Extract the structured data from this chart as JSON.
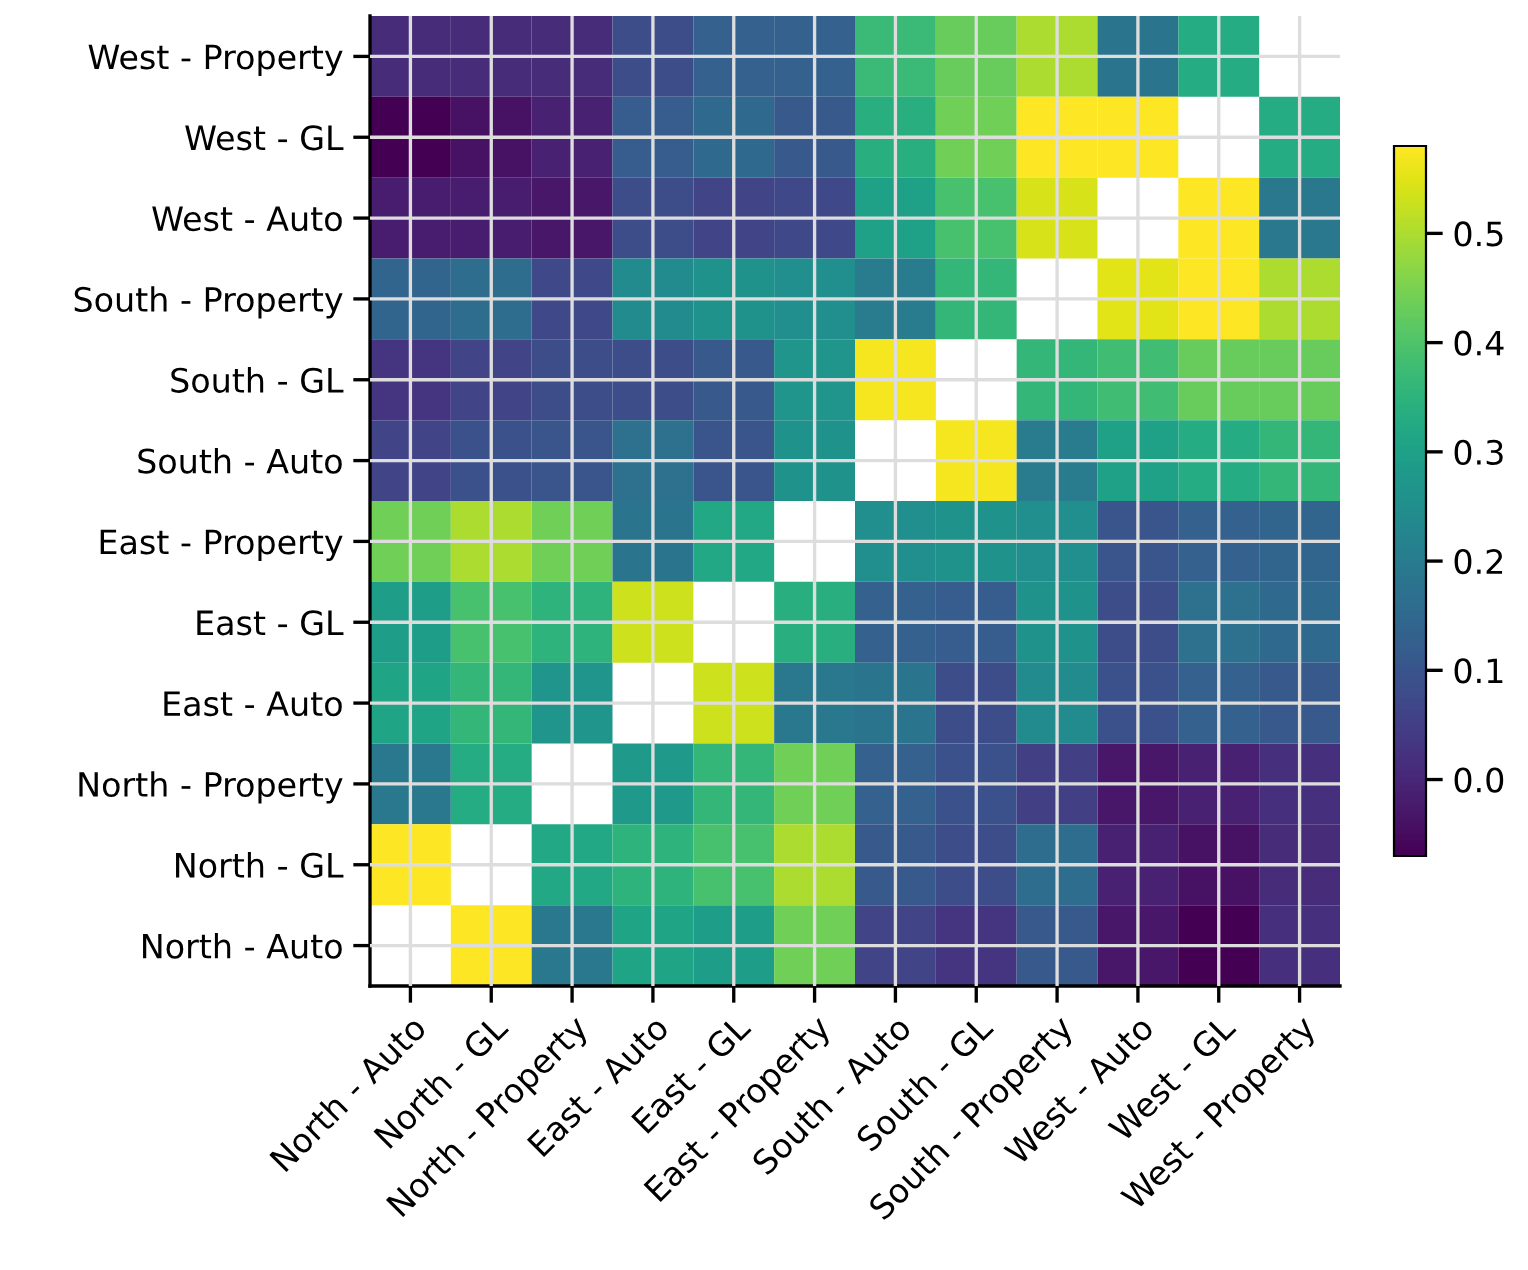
{
  "chart_data": {
    "type": "heatmap",
    "categories": [
      "North - Auto",
      "North - GL",
      "North - Property",
      "East - Auto",
      "East - GL",
      "East - Property",
      "South - Auto",
      "South - GL",
      "South - Property",
      "West - Auto",
      "West - GL",
      "West - Property"
    ],
    "y_categories": [
      "West - Property",
      "West - GL",
      "West - Auto",
      "South - Property",
      "South - GL",
      "South - Auto",
      "East - Property",
      "East - GL",
      "East - Auto",
      "North - Property",
      "North - GL",
      "North - Auto"
    ],
    "cells": [
      [
        0.01,
        0.01,
        0.01,
        0.08,
        0.13,
        0.13,
        0.37,
        0.43,
        0.5,
        0.18,
        0.33,
        null
      ],
      [
        -0.07,
        -0.04,
        -0.01,
        0.12,
        0.15,
        0.11,
        0.34,
        0.44,
        0.58,
        0.58,
        null,
        0.33
      ],
      [
        -0.02,
        -0.02,
        -0.03,
        0.08,
        0.06,
        0.07,
        0.3,
        0.39,
        0.54,
        null,
        0.58,
        0.19
      ],
      [
        0.14,
        0.16,
        0.07,
        0.24,
        0.26,
        0.25,
        0.2,
        0.36,
        null,
        0.55,
        0.58,
        0.5
      ],
      [
        0.03,
        0.06,
        0.08,
        0.08,
        0.11,
        0.27,
        0.57,
        null,
        0.36,
        0.38,
        0.43,
        0.43
      ],
      [
        0.06,
        0.09,
        0.1,
        0.17,
        0.1,
        0.26,
        null,
        0.57,
        0.2,
        0.3,
        0.33,
        0.36
      ],
      [
        0.44,
        0.5,
        0.44,
        0.18,
        0.32,
        null,
        0.25,
        0.26,
        0.25,
        0.1,
        0.13,
        0.14
      ],
      [
        0.29,
        0.39,
        0.35,
        0.53,
        null,
        0.34,
        0.13,
        0.12,
        0.26,
        0.08,
        0.17,
        0.15
      ],
      [
        0.31,
        0.36,
        0.27,
        null,
        0.53,
        0.19,
        0.18,
        0.08,
        0.24,
        0.09,
        0.13,
        0.11
      ],
      [
        0.19,
        0.33,
        null,
        0.28,
        0.36,
        0.44,
        0.13,
        0.09,
        0.05,
        -0.03,
        -0.01,
        0.02
      ],
      [
        0.58,
        null,
        0.32,
        0.35,
        0.39,
        0.5,
        0.11,
        0.08,
        0.16,
        -0.01,
        -0.04,
        0.01
      ],
      [
        null,
        0.58,
        0.19,
        0.31,
        0.29,
        0.44,
        0.06,
        0.03,
        0.11,
        -0.03,
        -0.07,
        0.02
      ]
    ],
    "clim": [
      -0.07,
      0.58
    ],
    "cticks": [
      {
        "value": 0,
        "label": "0.0"
      },
      0.1,
      0.2,
      0.3,
      0.4,
      0.5
    ],
    "grid": true
  }
}
